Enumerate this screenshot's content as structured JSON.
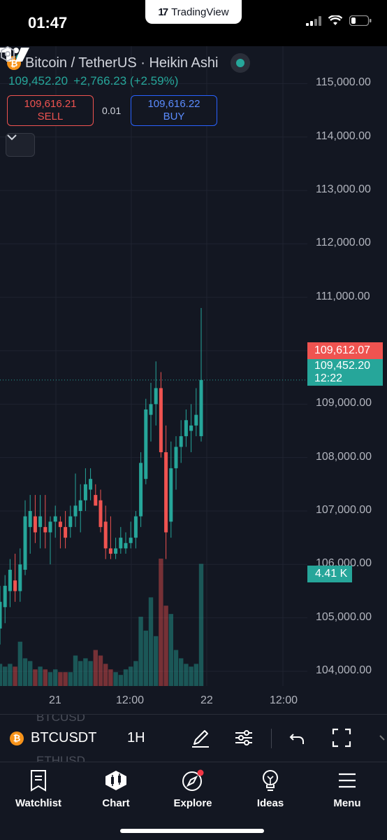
{
  "status_bar": {
    "time": "01:47",
    "app_pill": "TradingView"
  },
  "header": {
    "title": "Bitcoin / TetherUS · Heikin Ashi",
    "last_price": "109,452.20",
    "change": "+2,766.23 (+2.59%)",
    "sell_price": "109,616.21",
    "sell_label": "SELL",
    "spread": "0.01",
    "buy_price": "109,616.22",
    "buy_label": "BUY"
  },
  "price_axis": {
    "labels": [
      "115,000.00",
      "114,000.00",
      "113,000.00",
      "112,000.00",
      "111,000.00",
      "110,000.00",
      "109,000.00",
      "108,000.00",
      "107,000.00",
      "106,000.00",
      "105,000.00",
      "104,000.00"
    ],
    "bid_tag": "109,612.07",
    "last_tag": "109,452.20",
    "countdown": "12:22",
    "volume_tag": "4.41 K"
  },
  "time_axis": {
    "labels": [
      "21",
      "12:00",
      "22",
      "12:00"
    ]
  },
  "toolbar": {
    "symbol": "BTCUSDT",
    "interval": "1H",
    "ghost_above": "BTCUSD",
    "ghost_below": "ETHUSD"
  },
  "bottom_nav": [
    {
      "label": "Watchlist",
      "icon": "watchlist-icon"
    },
    {
      "label": "Chart",
      "icon": "chart-icon"
    },
    {
      "label": "Explore",
      "icon": "explore-icon"
    },
    {
      "label": "Ideas",
      "icon": "ideas-icon"
    },
    {
      "label": "Menu",
      "icon": "menu-icon"
    }
  ],
  "colors": {
    "up": "#26a69a",
    "down": "#ef5350",
    "background": "#131722",
    "buy_accent": "#2962ff"
  },
  "chart_data": {
    "type": "candlestick",
    "symbol": "BTCUSDT",
    "style": "Heikin Ashi",
    "interval": "1H",
    "ylim": [
      103200,
      115700
    ],
    "candles": [
      {
        "o": 104800,
        "h": 105600,
        "l": 104500,
        "c": 105300,
        "v": 0.8
      },
      {
        "o": 105200,
        "h": 105800,
        "l": 104900,
        "c": 105600,
        "v": 0.7
      },
      {
        "o": 105500,
        "h": 106100,
        "l": 105200,
        "c": 105900,
        "v": 0.8
      },
      {
        "o": 105700,
        "h": 106200,
        "l": 105300,
        "c": 105500,
        "v": 0.7
      },
      {
        "o": 105500,
        "h": 106300,
        "l": 105300,
        "c": 106000,
        "v": 1.6
      },
      {
        "o": 105900,
        "h": 107200,
        "l": 105800,
        "c": 106900,
        "v": 1.0
      },
      {
        "o": 106700,
        "h": 107300,
        "l": 106200,
        "c": 107000,
        "v": 0.9
      },
      {
        "o": 106900,
        "h": 107300,
        "l": 106400,
        "c": 106600,
        "v": 0.6
      },
      {
        "o": 106700,
        "h": 107300,
        "l": 106300,
        "c": 106900,
        "v": 0.7
      },
      {
        "o": 106700,
        "h": 107300,
        "l": 106300,
        "c": 106600,
        "v": 0.6
      },
      {
        "o": 106600,
        "h": 106900,
        "l": 106000,
        "c": 106800,
        "v": 0.5
      },
      {
        "o": 106800,
        "h": 107100,
        "l": 106500,
        "c": 106900,
        "v": 0.6
      },
      {
        "o": 106800,
        "h": 106900,
        "l": 106300,
        "c": 106700,
        "v": 0.5
      },
      {
        "o": 106700,
        "h": 107000,
        "l": 106300,
        "c": 106500,
        "v": 0.5
      },
      {
        "o": 106700,
        "h": 107100,
        "l": 106500,
        "c": 106900,
        "v": 0.5
      },
      {
        "o": 106900,
        "h": 107700,
        "l": 106700,
        "c": 107100,
        "v": 1.1
      },
      {
        "o": 107000,
        "h": 107500,
        "l": 106600,
        "c": 107200,
        "v": 0.9
      },
      {
        "o": 107200,
        "h": 107800,
        "l": 107000,
        "c": 107500,
        "v": 1.0
      },
      {
        "o": 107400,
        "h": 107800,
        "l": 107200,
        "c": 107600,
        "v": 0.9
      },
      {
        "o": 107300,
        "h": 107500,
        "l": 107100,
        "c": 107100,
        "v": 1.3
      },
      {
        "o": 107200,
        "h": 107400,
        "l": 106600,
        "c": 106700,
        "v": 1.1
      },
      {
        "o": 106800,
        "h": 107100,
        "l": 106100,
        "c": 106300,
        "v": 0.8
      },
      {
        "o": 106300,
        "h": 106900,
        "l": 106100,
        "c": 106200,
        "v": 0.6
      },
      {
        "o": 106200,
        "h": 106500,
        "l": 106100,
        "c": 106300,
        "v": 0.5
      },
      {
        "o": 106300,
        "h": 106700,
        "l": 106200,
        "c": 106500,
        "v": 0.4
      },
      {
        "o": 106300,
        "h": 106600,
        "l": 106200,
        "c": 106400,
        "v": 0.6
      },
      {
        "o": 106400,
        "h": 106800,
        "l": 106300,
        "c": 106500,
        "v": 0.7
      },
      {
        "o": 106500,
        "h": 107000,
        "l": 106300,
        "c": 106900,
        "v": 0.9
      },
      {
        "o": 106900,
        "h": 108100,
        "l": 106700,
        "c": 107900,
        "v": 2.5
      },
      {
        "o": 107600,
        "h": 109100,
        "l": 107500,
        "c": 108900,
        "v": 2.0
      },
      {
        "o": 108800,
        "h": 109400,
        "l": 108300,
        "c": 109000,
        "v": 3.2
      },
      {
        "o": 109000,
        "h": 109800,
        "l": 108600,
        "c": 109300,
        "v": 1.8
      },
      {
        "o": 109300,
        "h": 109600,
        "l": 108000,
        "c": 108100,
        "v": 4.6
      },
      {
        "o": 108100,
        "h": 108600,
        "l": 106100,
        "c": 106600,
        "v": 2.9
      },
      {
        "o": 106800,
        "h": 108300,
        "l": 106500,
        "c": 107800,
        "v": 2.6
      },
      {
        "o": 107800,
        "h": 108400,
        "l": 107400,
        "c": 108200,
        "v": 1.3
      },
      {
        "o": 108200,
        "h": 108700,
        "l": 107900,
        "c": 108400,
        "v": 1.0
      },
      {
        "o": 108400,
        "h": 108900,
        "l": 108200,
        "c": 108700,
        "v": 0.8
      },
      {
        "o": 108500,
        "h": 109000,
        "l": 108100,
        "c": 108600,
        "v": 0.7
      },
      {
        "o": 108600,
        "h": 109300,
        "l": 108400,
        "c": 108800,
        "v": 0.8
      },
      {
        "o": 108400,
        "h": 110800,
        "l": 108300,
        "c": 109452,
        "v": 4.41
      }
    ],
    "volume_unit": "K",
    "x_tick_labels": [
      "21",
      "12:00",
      "22",
      "12:00"
    ],
    "last_price": 109452.2,
    "bid_price": 109612.07
  }
}
